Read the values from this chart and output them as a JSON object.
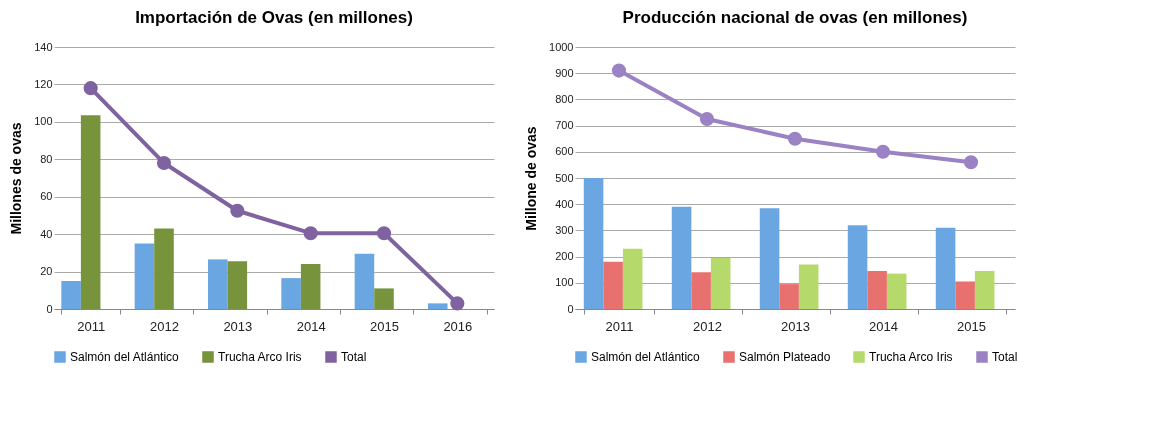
{
  "chart_data": [
    {
      "type": "bar",
      "title": "Importación de Ovas (en millones)",
      "ylabel": "Millones de ovas",
      "categories": [
        "2011",
        "2012",
        "2013",
        "2014",
        "2015",
        "2016"
      ],
      "series": [
        {
          "name": "Salmón del Atlántico",
          "color": "#6aa6e2",
          "values": [
            15,
            35,
            26.5,
            16.5,
            29.5,
            3
          ]
        },
        {
          "name": "Trucha Arco Iris",
          "color": "#77933c",
          "values": [
            103.5,
            43,
            25.5,
            24,
            11,
            null
          ]
        },
        {
          "name": "Total",
          "type": "line",
          "color": "#7f63a0",
          "values": [
            118,
            78,
            52.5,
            40.5,
            40.5,
            3
          ]
        }
      ],
      "ylim": [
        0,
        140
      ],
      "yticks": [
        0,
        20,
        40,
        60,
        80,
        100,
        120,
        140
      ],
      "grid": "y",
      "legend": "bottom",
      "marker": "circle"
    },
    {
      "type": "bar",
      "title": "Producción nacional de ovas (en millones)",
      "ylabel": "Millone de ovas",
      "categories": [
        "2011",
        "2012",
        "2013",
        "2014",
        "2015"
      ],
      "series": [
        {
          "name": "Salmón del Atlántico",
          "color": "#6aa6e2",
          "values": [
            500,
            390,
            385,
            320,
            310
          ]
        },
        {
          "name": "Salmón Plateado",
          "color": "#e8716f",
          "values": [
            180,
            140,
            95,
            145,
            105
          ]
        },
        {
          "name": "Trucha Arco Iris",
          "color": "#b5d96a",
          "values": [
            230,
            195,
            170,
            135,
            145
          ]
        },
        {
          "name": "Total",
          "type": "line",
          "color": "#9b82c4",
          "values": [
            910,
            725,
            650,
            600,
            560
          ]
        }
      ],
      "ylim": [
        0,
        1000
      ],
      "yticks": [
        0,
        100,
        200,
        300,
        400,
        500,
        600,
        700,
        800,
        900,
        1000
      ],
      "grid": "y",
      "legend": "bottom",
      "marker": "circle"
    }
  ]
}
